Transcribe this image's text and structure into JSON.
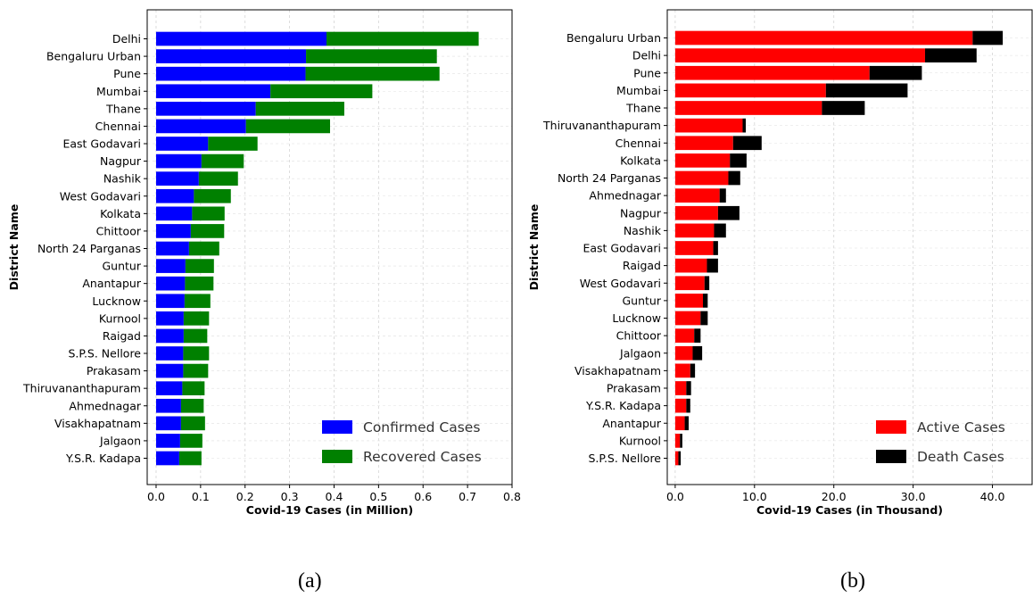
{
  "captions": [
    "(a)",
    "(b)"
  ],
  "chart_data": [
    {
      "type": "bar",
      "orientation": "horizontal",
      "stacked": true,
      "xlabel": "Covid-19 Cases (in Million)",
      "ylabel": "District Name",
      "xlim": [
        -0.02,
        0.8
      ],
      "xticks": [
        "0.0",
        "0.1",
        "0.2",
        "0.3",
        "0.4",
        "0.5",
        "0.6",
        "0.7",
        "0.8"
      ],
      "xtick_values": [
        0,
        0.1,
        0.2,
        0.3,
        0.4,
        0.5,
        0.6,
        0.7,
        0.8
      ],
      "grid": true,
      "legend_position": "bottom-right",
      "categories": [
        "Delhi",
        "Bengaluru Urban",
        "Pune",
        "Mumbai",
        "Thane",
        "Chennai",
        "East Godavari",
        "Nagpur",
        "Nashik",
        "West Godavari",
        "Kolkata",
        "Chittoor",
        "North 24 Parganas",
        "Guntur",
        "Anantapur",
        "Lucknow",
        "Kurnool",
        "Raigad",
        "S.P.S. Nellore",
        "Prakasam",
        "Thiruvananthapuram",
        "Ahmednagar",
        "Visakhapatnam",
        "Jalgaon",
        "Y.S.R. Kadapa"
      ],
      "series": [
        {
          "name": "Confirmed Cases",
          "color": "#0000ff",
          "values": [
            0.383,
            0.337,
            0.336,
            0.257,
            0.224,
            0.202,
            0.117,
            0.102,
            0.096,
            0.085,
            0.081,
            0.078,
            0.074,
            0.066,
            0.065,
            0.064,
            0.062,
            0.062,
            0.061,
            0.061,
            0.059,
            0.056,
            0.056,
            0.054,
            0.052
          ]
        },
        {
          "name": "Recovered Cases",
          "color": "#008000",
          "values": [
            0.342,
            0.294,
            0.301,
            0.229,
            0.199,
            0.189,
            0.111,
            0.095,
            0.088,
            0.083,
            0.073,
            0.075,
            0.068,
            0.064,
            0.064,
            0.058,
            0.057,
            0.053,
            0.058,
            0.056,
            0.05,
            0.051,
            0.054,
            0.05,
            0.05
          ]
        }
      ]
    },
    {
      "type": "bar",
      "orientation": "horizontal",
      "stacked": true,
      "xlabel": "Covid-19 Cases (in Thousand)",
      "ylabel": "District Name",
      "xlim": [
        -1,
        45
      ],
      "xticks": [
        "0.0",
        "10.0",
        "20.0",
        "30.0",
        "40.0"
      ],
      "xtick_values": [
        0,
        10,
        20,
        30,
        40
      ],
      "grid": true,
      "legend_position": "bottom-right",
      "categories": [
        "Bengaluru Urban",
        "Delhi",
        "Pune",
        "Mumbai",
        "Thane",
        "Thiruvananthapuram",
        "Chennai",
        "Kolkata",
        "North 24 Parganas",
        "Ahmednagar",
        "Nagpur",
        "Nashik",
        "East Godavari",
        "Raigad",
        "West Godavari",
        "Guntur",
        "Lucknow",
        "Chittoor",
        "Jalgaon",
        "Visakhapatnam",
        "Prakasam",
        "Y.S.R. Kadapa",
        "Anantapur",
        "Kurnool",
        "S.P.S. Nellore"
      ],
      "series": [
        {
          "name": "Active Cases",
          "color": "#ff0000",
          "values": [
            37.5,
            31.5,
            24.5,
            19.0,
            18.5,
            8.5,
            7.3,
            6.9,
            6.7,
            5.6,
            5.4,
            4.9,
            4.8,
            4.0,
            3.7,
            3.5,
            3.2,
            2.4,
            2.2,
            1.9,
            1.4,
            1.4,
            1.2,
            0.6,
            0.4
          ]
        },
        {
          "name": "Death Cases",
          "color": "#000000",
          "values": [
            3.8,
            6.5,
            6.6,
            10.3,
            5.4,
            0.4,
            3.6,
            2.1,
            1.5,
            0.8,
            2.7,
            1.5,
            0.6,
            1.4,
            0.6,
            0.6,
            0.9,
            0.8,
            1.2,
            0.6,
            0.6,
            0.5,
            0.5,
            0.3,
            0.3
          ]
        }
      ]
    }
  ]
}
